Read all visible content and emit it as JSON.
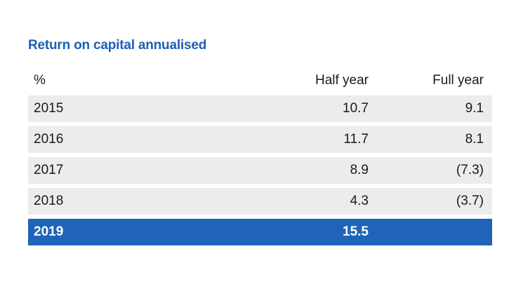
{
  "title": "Return on capital annualised",
  "headers": [
    "%",
    "Half year",
    "Full year"
  ],
  "rows": [
    {
      "year": "2015",
      "half": "10.7",
      "full": "9.1"
    },
    {
      "year": "2016",
      "half": "11.7",
      "full": "8.1"
    },
    {
      "year": "2017",
      "half": "8.9",
      "full": "(7.3)"
    },
    {
      "year": "2018",
      "half": "4.3",
      "full": "(3.7)"
    },
    {
      "year": "2019",
      "half": "15.5",
      "full": ""
    }
  ],
  "colors": {
    "accent": "#1e5fb4",
    "highlight_row": "#1f64b8",
    "row_bg": "#ececec"
  }
}
